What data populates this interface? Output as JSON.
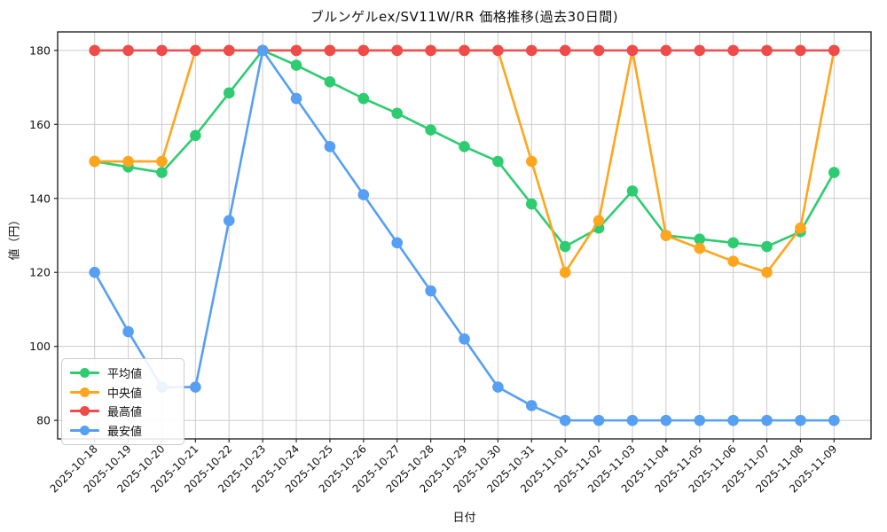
{
  "chart_data": {
    "type": "line",
    "title": "ブルンゲルex/SV11W/RR 価格推移(過去30日間)",
    "xlabel": "日付",
    "ylabel": "値（円）",
    "grid": true,
    "legend_position": "lower-left",
    "ylim": [
      75,
      185
    ],
    "yticks": [
      80,
      100,
      120,
      140,
      160,
      180
    ],
    "categories": [
      "2025-10-18",
      "2025-10-19",
      "2025-10-20",
      "2025-10-21",
      "2025-10-22",
      "2025-10-23",
      "2025-10-24",
      "2025-10-25",
      "2025-10-26",
      "2025-10-27",
      "2025-10-28",
      "2025-10-29",
      "2025-10-30",
      "2025-10-31",
      "2025-11-01",
      "2025-11-02",
      "2025-11-03",
      "2025-11-04",
      "2025-11-05",
      "2025-11-06",
      "2025-11-07",
      "2025-11-08",
      "2025-11-09"
    ],
    "series": [
      {
        "name": "平均値",
        "color": "#2ecc71",
        "values": [
          150,
          148.5,
          147,
          157,
          168.5,
          180,
          176,
          171.5,
          167,
          163,
          158.5,
          154,
          150,
          138.5,
          127,
          132,
          142,
          130,
          129,
          128,
          127,
          131,
          147
        ]
      },
      {
        "name": "中央値",
        "color": "#ffa51e",
        "values": [
          150,
          150,
          150,
          180,
          180,
          180,
          180,
          180,
          180,
          180,
          180,
          180,
          180,
          150,
          120,
          134,
          180,
          130,
          126.5,
          123,
          120,
          132,
          180
        ]
      },
      {
        "name": "最高値",
        "color": "#ef4b4b",
        "values": [
          180,
          180,
          180,
          180,
          180,
          180,
          180,
          180,
          180,
          180,
          180,
          180,
          180,
          180,
          180,
          180,
          180,
          180,
          180,
          180,
          180,
          180,
          180
        ]
      },
      {
        "name": "最安値",
        "color": "#569ff2",
        "values": [
          120,
          104,
          89,
          89,
          134,
          180,
          167,
          154,
          141,
          128,
          115,
          102,
          89,
          84,
          80,
          80,
          80,
          80,
          80,
          80,
          80,
          80,
          80
        ]
      }
    ],
    "style": {
      "grid_color": "#cccccc",
      "spine_color": "#262626",
      "tick_label_color": "#111111",
      "background": "#ffffff"
    }
  }
}
